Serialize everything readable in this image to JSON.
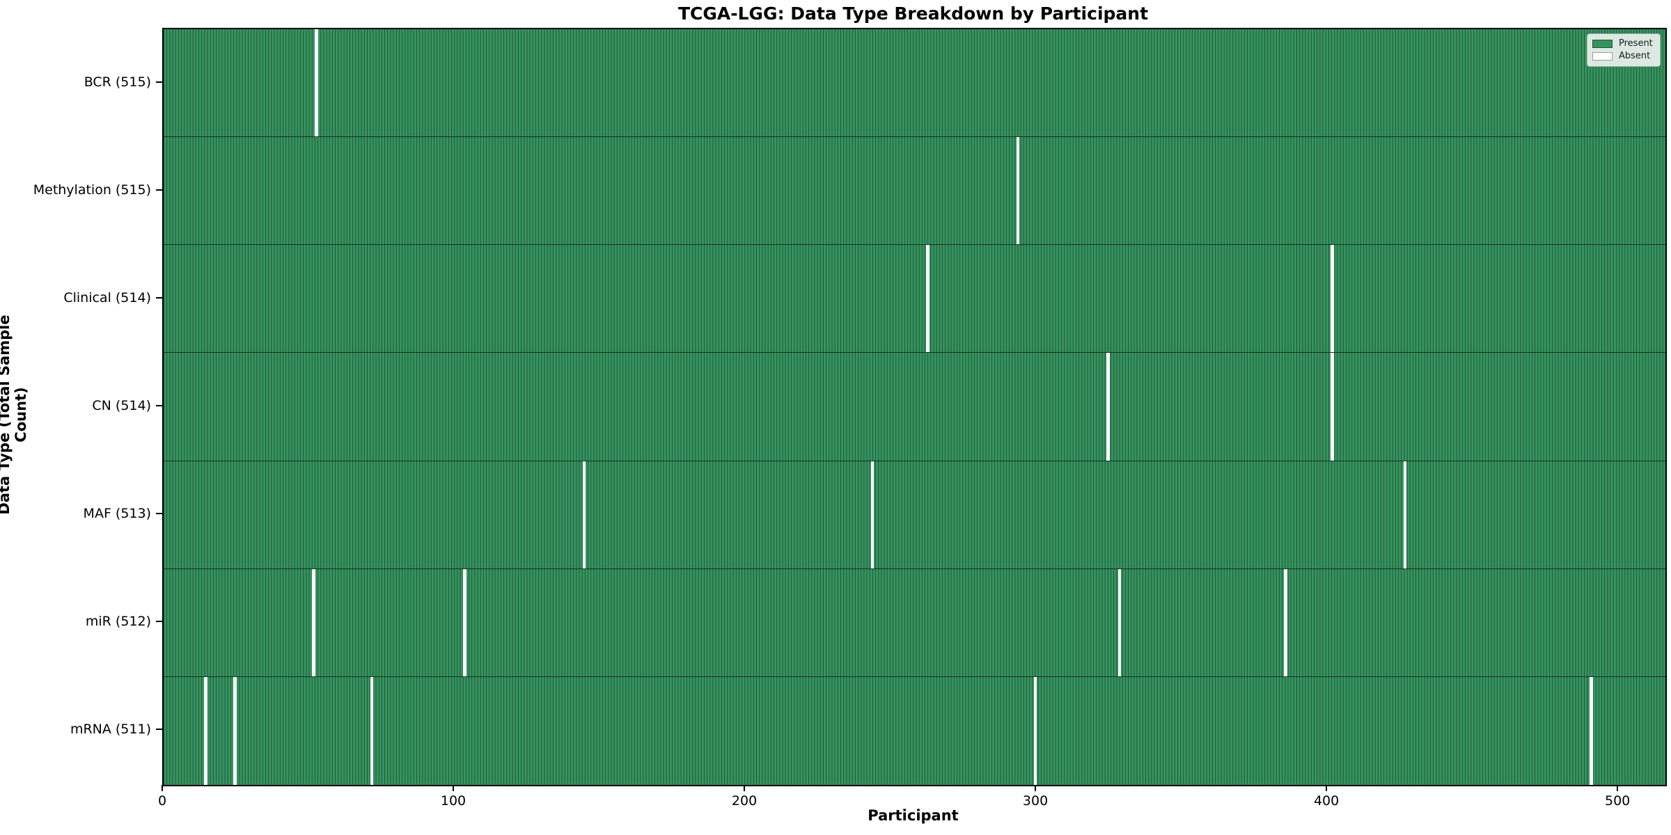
{
  "title": "TCGA-LGG: Data Type Breakdown by Participant",
  "x_axis_label": "Participant",
  "y_axis_label": "Data Type (Total Sample Count)",
  "legend": {
    "present_label": "Present",
    "absent_label": "Absent"
  },
  "colors": {
    "present_fill": "#36935f",
    "present_edge": "#1d5737",
    "absent": "#ffffff",
    "row_divider": "rgba(10,20,12,0.75)",
    "plot_border": "#000000",
    "legend_bg": "rgba(250,250,250,0.85)",
    "legend_border": "#a9b0a9",
    "text": "#000000"
  },
  "chart_data": {
    "type": "heatmap",
    "title": "TCGA-LGG: Data Type Breakdown by Participant",
    "xlabel": "Participant",
    "ylabel": "Data Type (Total Sample Count)",
    "legend": [
      "Present",
      "Absent"
    ],
    "legend_position": "upper right",
    "grid": false,
    "x_range": [
      0,
      516
    ],
    "total_participants": 516,
    "x_ticks": [
      0,
      100,
      200,
      300,
      400,
      500
    ],
    "rows": [
      {
        "label": "BCR (515)",
        "data_type": "BCR",
        "present_count": 515,
        "absent_participants": [
          52
        ]
      },
      {
        "label": "Methylation (515)",
        "data_type": "Methylation",
        "present_count": 515,
        "absent_participants": [
          293
        ]
      },
      {
        "label": "Clinical (514)",
        "data_type": "Clinical",
        "present_count": 514,
        "absent_participants": [
          262,
          401
        ]
      },
      {
        "label": "CN (514)",
        "data_type": "CN",
        "present_count": 514,
        "absent_participants": [
          324,
          401
        ]
      },
      {
        "label": "MAF (513)",
        "data_type": "MAF",
        "present_count": 513,
        "absent_participants": [
          144,
          243,
          426
        ]
      },
      {
        "label": "miR (512)",
        "data_type": "miR",
        "present_count": 512,
        "absent_participants": [
          51,
          103,
          328,
          385
        ]
      },
      {
        "label": "mRNA (511)",
        "data_type": "mRNA",
        "present_count": 511,
        "absent_participants": [
          14,
          24,
          71,
          299,
          490
        ]
      }
    ]
  }
}
